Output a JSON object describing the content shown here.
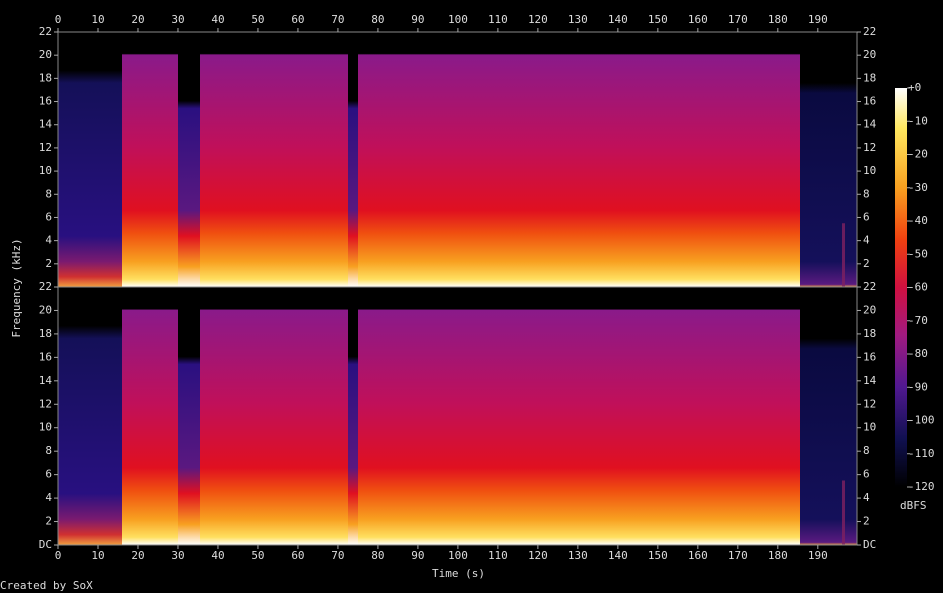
{
  "chart_data": [
    {
      "type": "spectrogram",
      "xlim": [
        0,
        199.8
      ],
      "xticks": [
        0,
        10,
        20,
        30,
        40,
        50,
        60,
        70,
        80,
        90,
        100,
        110,
        120,
        130,
        140,
        150,
        160,
        170,
        180,
        190
      ],
      "ylim": [
        0,
        22
      ],
      "yticks": [
        2,
        4,
        6,
        8,
        10,
        12,
        14,
        16,
        18,
        20,
        22
      ],
      "xaxis_position": "top"
    },
    {
      "type": "spectrogram",
      "xlim": [
        0,
        199.8
      ],
      "xticks": [
        0,
        10,
        20,
        30,
        40,
        50,
        60,
        70,
        80,
        90,
        100,
        110,
        120,
        130,
        140,
        150,
        160,
        170,
        180,
        190
      ],
      "ylim": [
        0,
        22
      ],
      "yticks": [
        {
          "value": 0,
          "label": "DC"
        },
        2,
        4,
        6,
        8,
        10,
        12,
        14,
        16,
        18,
        20,
        22
      ],
      "xaxis_position": "bottom"
    }
  ],
  "xlabel": "Time (s)",
  "ylabel": "Frequency (kHz)",
  "colorbar": {
    "lim": [
      -120,
      0
    ],
    "ticks": [
      {
        "value": 0,
        "label": "+0"
      },
      -10,
      -20,
      -30,
      -40,
      -50,
      -60,
      -70,
      -80,
      -90,
      -100,
      -110,
      -120
    ],
    "label": "dBFS"
  },
  "footer": "Created by SoX"
}
